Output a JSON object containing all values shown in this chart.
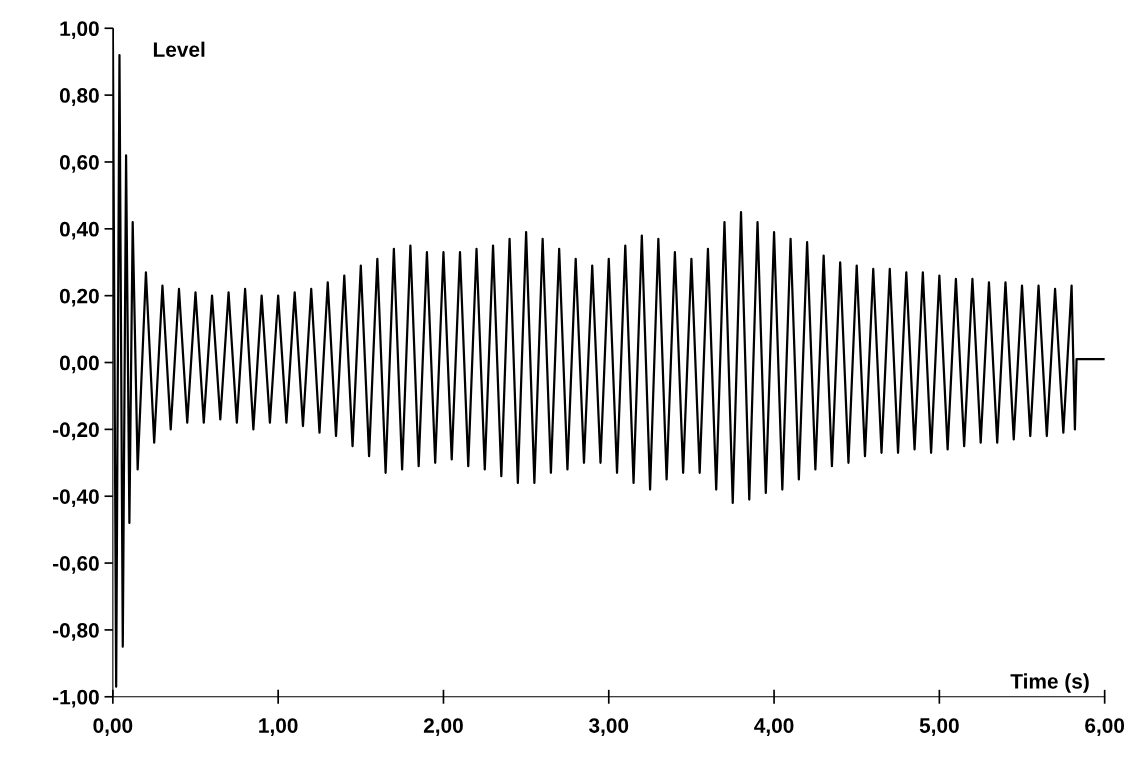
{
  "chart_data": {
    "type": "line",
    "xlabel": "Time (s)",
    "ylabel": "Level",
    "xlim": [
      0,
      6
    ],
    "ylim": [
      -1,
      1
    ],
    "xticks": [
      {
        "value": 0,
        "label": "0,00"
      },
      {
        "value": 1,
        "label": "1,00"
      },
      {
        "value": 2,
        "label": "2,00"
      },
      {
        "value": 3,
        "label": "3,00"
      },
      {
        "value": 4,
        "label": "4,00"
      },
      {
        "value": 5,
        "label": "5,00"
      },
      {
        "value": 6,
        "label": "6,00"
      }
    ],
    "yticks": [
      {
        "value": -1,
        "label": "-1,00"
      },
      {
        "value": -0.8,
        "label": "-0,80"
      },
      {
        "value": -0.6,
        "label": "-0,60"
      },
      {
        "value": -0.4,
        "label": "-0,40"
      },
      {
        "value": -0.2,
        "label": "-0,20"
      },
      {
        "value": 0,
        "label": "0,00"
      },
      {
        "value": 0.2,
        "label": "0,20"
      },
      {
        "value": 0.4,
        "label": "0,40"
      },
      {
        "value": 0.6,
        "label": "0,60"
      },
      {
        "value": 0.8,
        "label": "0,80"
      },
      {
        "value": 1,
        "label": "1,00"
      }
    ],
    "grid": false,
    "marker": "none",
    "line_style": "solid",
    "series": [
      {
        "color": "#000000",
        "x": [
          0.0,
          0.02,
          0.04,
          0.06,
          0.08,
          0.1,
          0.12,
          0.15,
          0.2,
          0.25,
          0.3,
          0.35,
          0.4,
          0.45,
          0.5,
          0.55,
          0.6,
          0.65,
          0.7,
          0.75,
          0.8,
          0.85,
          0.9,
          0.95,
          1.0,
          1.05,
          1.1,
          1.15,
          1.2,
          1.25,
          1.3,
          1.35,
          1.4,
          1.45,
          1.5,
          1.55,
          1.6,
          1.65,
          1.7,
          1.75,
          1.8,
          1.85,
          1.9,
          1.95,
          2.0,
          2.05,
          2.1,
          2.15,
          2.2,
          2.25,
          2.3,
          2.35,
          2.4,
          2.45,
          2.5,
          2.55,
          2.6,
          2.65,
          2.7,
          2.75,
          2.8,
          2.85,
          2.9,
          2.95,
          3.0,
          3.05,
          3.1,
          3.15,
          3.2,
          3.25,
          3.3,
          3.35,
          3.4,
          3.45,
          3.5,
          3.55,
          3.6,
          3.65,
          3.7,
          3.75,
          3.8,
          3.85,
          3.9,
          3.95,
          4.0,
          4.05,
          4.1,
          4.15,
          4.2,
          4.25,
          4.3,
          4.35,
          4.4,
          4.45,
          4.5,
          4.55,
          4.6,
          4.65,
          4.7,
          4.75,
          4.8,
          4.85,
          4.9,
          4.95,
          5.0,
          5.05,
          5.1,
          5.15,
          5.2,
          5.25,
          5.3,
          5.35,
          5.4,
          5.45,
          5.5,
          5.55,
          5.6,
          5.65,
          5.7,
          5.75,
          5.8,
          5.82,
          5.83,
          6.0
        ],
        "values": [
          1.0,
          -0.97,
          0.92,
          -0.85,
          0.62,
          -0.48,
          0.42,
          -0.32,
          0.27,
          -0.24,
          0.23,
          -0.2,
          0.22,
          -0.18,
          0.21,
          -0.18,
          0.2,
          -0.17,
          0.21,
          -0.18,
          0.22,
          -0.2,
          0.2,
          -0.18,
          0.2,
          -0.18,
          0.21,
          -0.19,
          0.22,
          -0.21,
          0.24,
          -0.22,
          0.26,
          -0.25,
          0.29,
          -0.28,
          0.31,
          -0.33,
          0.34,
          -0.32,
          0.35,
          -0.31,
          0.33,
          -0.3,
          0.33,
          -0.29,
          0.33,
          -0.31,
          0.34,
          -0.32,
          0.35,
          -0.34,
          0.37,
          -0.36,
          0.39,
          -0.36,
          0.37,
          -0.33,
          0.34,
          -0.32,
          0.31,
          -0.3,
          0.29,
          -0.3,
          0.31,
          -0.33,
          0.35,
          -0.36,
          0.38,
          -0.38,
          0.37,
          -0.35,
          0.33,
          -0.33,
          0.31,
          -0.33,
          0.34,
          -0.38,
          0.42,
          -0.42,
          0.45,
          -0.41,
          0.42,
          -0.39,
          0.39,
          -0.38,
          0.37,
          -0.35,
          0.36,
          -0.32,
          0.32,
          -0.31,
          0.3,
          -0.3,
          0.29,
          -0.28,
          0.28,
          -0.27,
          0.28,
          -0.27,
          0.27,
          -0.26,
          0.27,
          -0.27,
          0.26,
          -0.26,
          0.25,
          -0.25,
          0.25,
          -0.24,
          0.24,
          -0.24,
          0.24,
          -0.23,
          0.23,
          -0.22,
          0.23,
          -0.22,
          0.22,
          -0.21,
          0.23,
          -0.2,
          0.01,
          0.01
        ]
      }
    ]
  }
}
